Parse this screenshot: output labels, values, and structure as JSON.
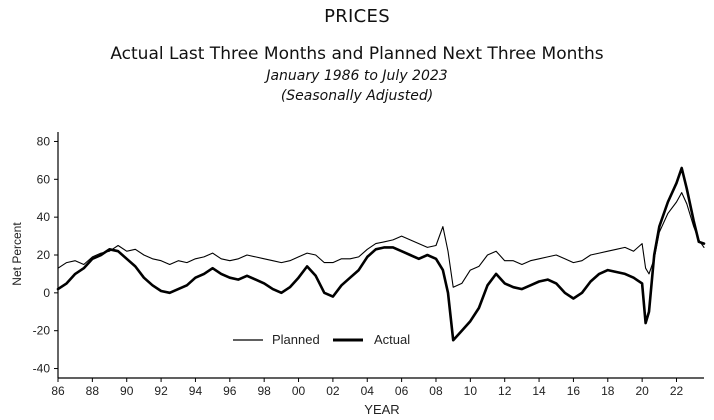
{
  "header": {
    "title": "PRICES",
    "subtitle": "Actual Last Three Months and Planned Next Three Months",
    "date_range": "January 1986 to July 2023",
    "note": "(Seasonally Adjusted)"
  },
  "chart_data": {
    "type": "line",
    "xlabel": "YEAR",
    "ylabel": "Net Percent",
    "xlim": [
      1986,
      2023.6
    ],
    "ylim": [
      -45,
      85
    ],
    "x_ticks": [
      1986,
      1988,
      1990,
      1992,
      1994,
      1996,
      1998,
      2000,
      2002,
      2004,
      2006,
      2008,
      2010,
      2012,
      2014,
      2016,
      2018,
      2020,
      2022
    ],
    "x_tick_labels": [
      "86",
      "88",
      "90",
      "92",
      "94",
      "96",
      "98",
      "00",
      "02",
      "04",
      "06",
      "08",
      "10",
      "12",
      "14",
      "16",
      "18",
      "20",
      "22"
    ],
    "y_ticks": [
      -40,
      -20,
      0,
      20,
      40,
      60,
      80
    ],
    "y_tick_labels": [
      "-40",
      "-20",
      "0",
      "20",
      "40",
      "60",
      "80"
    ],
    "grid": false,
    "legend": "bottom-left",
    "series": [
      {
        "name": "Planned",
        "color": "#000000",
        "line": "thin",
        "x": [
          1986.0,
          1986.5,
          1987.0,
          1987.5,
          1988.0,
          1988.5,
          1989.0,
          1989.5,
          1990.0,
          1990.5,
          1991.0,
          1991.5,
          1992.0,
          1992.5,
          1993.0,
          1993.5,
          1994.0,
          1994.5,
          1995.0,
          1995.5,
          1996.0,
          1996.5,
          1997.0,
          1997.5,
          1998.0,
          1998.5,
          1999.0,
          1999.5,
          2000.0,
          2000.5,
          2001.0,
          2001.5,
          2002.0,
          2002.5,
          2003.0,
          2003.5,
          2004.0,
          2004.5,
          2005.0,
          2005.5,
          2006.0,
          2006.5,
          2007.0,
          2007.5,
          2008.0,
          2008.4,
          2008.7,
          2009.0,
          2009.5,
          2010.0,
          2010.5,
          2011.0,
          2011.5,
          2012.0,
          2012.5,
          2013.0,
          2013.5,
          2014.0,
          2014.5,
          2015.0,
          2015.5,
          2016.0,
          2016.5,
          2017.0,
          2017.5,
          2018.0,
          2018.5,
          2019.0,
          2019.5,
          2020.0,
          2020.2,
          2020.4,
          2020.7,
          2021.0,
          2021.5,
          2022.0,
          2022.3,
          2022.6,
          2023.0,
          2023.3,
          2023.6
        ],
        "y": [
          13,
          16,
          17,
          15,
          19,
          21,
          22,
          25,
          22,
          23,
          20,
          18,
          17,
          15,
          17,
          16,
          18,
          19,
          21,
          18,
          17,
          18,
          20,
          19,
          18,
          17,
          16,
          17,
          19,
          21,
          20,
          16,
          16,
          18,
          18,
          19,
          23,
          26,
          27,
          28,
          30,
          28,
          26,
          24,
          25,
          35,
          22,
          3,
          5,
          12,
          14,
          20,
          22,
          17,
          17,
          15,
          17,
          18,
          19,
          20,
          18,
          16,
          17,
          20,
          21,
          22,
          23,
          24,
          22,
          26,
          13,
          10,
          18,
          32,
          42,
          48,
          53,
          47,
          35,
          28,
          24
        ]
      },
      {
        "name": "Actual",
        "color": "#000000",
        "line": "thick",
        "x": [
          1986.0,
          1986.5,
          1987.0,
          1987.5,
          1988.0,
          1988.5,
          1989.0,
          1989.5,
          1990.0,
          1990.5,
          1991.0,
          1991.5,
          1992.0,
          1992.5,
          1993.0,
          1993.5,
          1994.0,
          1994.5,
          1995.0,
          1995.5,
          1996.0,
          1996.5,
          1997.0,
          1997.5,
          1998.0,
          1998.5,
          1999.0,
          1999.5,
          2000.0,
          2000.5,
          2001.0,
          2001.5,
          2002.0,
          2002.5,
          2003.0,
          2003.5,
          2004.0,
          2004.5,
          2005.0,
          2005.5,
          2006.0,
          2006.5,
          2007.0,
          2007.5,
          2008.0,
          2008.4,
          2008.7,
          2009.0,
          2009.5,
          2010.0,
          2010.5,
          2011.0,
          2011.5,
          2012.0,
          2012.5,
          2013.0,
          2013.5,
          2014.0,
          2014.5,
          2015.0,
          2015.5,
          2016.0,
          2016.5,
          2017.0,
          2017.5,
          2018.0,
          2018.5,
          2019.0,
          2019.5,
          2020.0,
          2020.2,
          2020.4,
          2020.7,
          2021.0,
          2021.5,
          2022.0,
          2022.3,
          2022.6,
          2023.0,
          2023.3,
          2023.6
        ],
        "y": [
          2,
          5,
          10,
          13,
          18,
          20,
          23,
          22,
          18,
          14,
          8,
          4,
          1,
          0,
          2,
          4,
          8,
          10,
          13,
          10,
          8,
          7,
          9,
          7,
          5,
          2,
          0,
          3,
          8,
          14,
          9,
          0,
          -2,
          4,
          8,
          12,
          19,
          23,
          24,
          24,
          22,
          20,
          18,
          20,
          18,
          12,
          0,
          -25,
          -20,
          -15,
          -8,
          4,
          10,
          5,
          3,
          2,
          4,
          6,
          7,
          5,
          0,
          -3,
          0,
          6,
          10,
          12,
          11,
          10,
          8,
          5,
          -16,
          -10,
          20,
          35,
          48,
          58,
          66,
          55,
          38,
          27,
          26
        ]
      }
    ]
  }
}
